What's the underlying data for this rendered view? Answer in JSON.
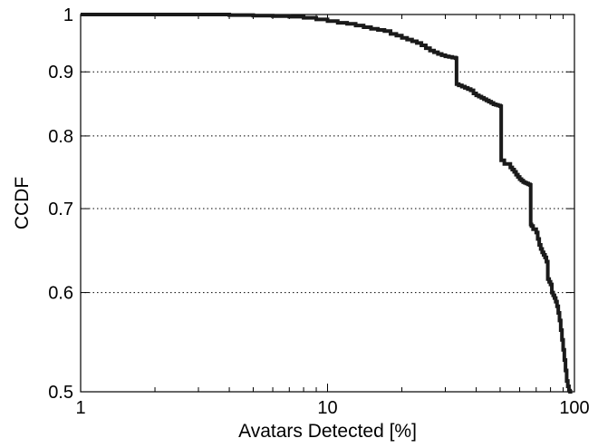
{
  "chart_data": {
    "type": "line",
    "title": "",
    "xlabel": "Avatars Detected [%]",
    "ylabel": "CCDF",
    "xscale": "log",
    "yscale": "log",
    "xlim": [
      1,
      100
    ],
    "ylim": [
      0.5,
      1
    ],
    "xticks": [
      1,
      10,
      100
    ],
    "xtick_labels": [
      "1",
      "10",
      "100"
    ],
    "yticks": [
      0.5,
      0.6,
      0.7,
      0.8,
      0.9,
      1
    ],
    "ytick_labels": [
      "0.5",
      "0.6",
      "0.7",
      "0.8",
      "0.9",
      "1"
    ],
    "grid": "horizontal dotted",
    "legend": "none",
    "line_color": "#1a1a1a",
    "series": [
      {
        "name": "",
        "x": [
          1,
          2,
          3,
          4,
          5,
          6,
          7,
          8,
          9,
          10,
          11,
          12,
          13,
          14,
          15,
          16,
          17,
          18,
          19,
          20,
          21,
          22,
          23,
          24,
          25,
          26,
          27,
          28,
          29,
          30,
          31,
          32,
          33,
          33.3,
          34,
          35,
          36,
          37,
          38,
          39,
          40,
          41,
          42,
          43,
          44,
          45,
          46,
          47,
          48,
          49,
          50,
          50.5,
          52,
          55,
          56,
          57,
          58,
          59,
          60,
          61,
          62,
          63,
          64,
          65,
          66,
          66.5,
          67,
          68,
          70,
          71,
          72,
          73,
          74,
          75,
          76,
          77,
          78,
          79,
          80,
          81,
          82,
          83,
          84,
          85,
          86,
          87,
          88,
          89,
          90,
          91,
          92,
          93,
          94,
          95,
          96,
          97,
          98
        ],
        "y": [
          1.0,
          1.0,
          1.0,
          0.999,
          0.998,
          0.997,
          0.996,
          0.994,
          0.991,
          0.988,
          0.985,
          0.983,
          0.98,
          0.977,
          0.974,
          0.972,
          0.97,
          0.965,
          0.962,
          0.958,
          0.955,
          0.952,
          0.949,
          0.945,
          0.94,
          0.936,
          0.933,
          0.93,
          0.928,
          0.926,
          0.925,
          0.924,
          0.923,
          0.88,
          0.878,
          0.876,
          0.874,
          0.872,
          0.87,
          0.865,
          0.862,
          0.86,
          0.858,
          0.856,
          0.854,
          0.852,
          0.85,
          0.848,
          0.847,
          0.846,
          0.845,
          0.765,
          0.76,
          0.755,
          0.752,
          0.749,
          0.745,
          0.742,
          0.739,
          0.737,
          0.735,
          0.734,
          0.733,
          0.732,
          0.731,
          0.68,
          0.678,
          0.674,
          0.67,
          0.662,
          0.655,
          0.65,
          0.646,
          0.643,
          0.64,
          0.635,
          0.615,
          0.612,
          0.609,
          0.6,
          0.597,
          0.594,
          0.59,
          0.585,
          0.578,
          0.57,
          0.56,
          0.55,
          0.54,
          0.53,
          0.52,
          0.51,
          0.505,
          0.501,
          0.5,
          0.5,
          0.5
        ]
      }
    ]
  }
}
